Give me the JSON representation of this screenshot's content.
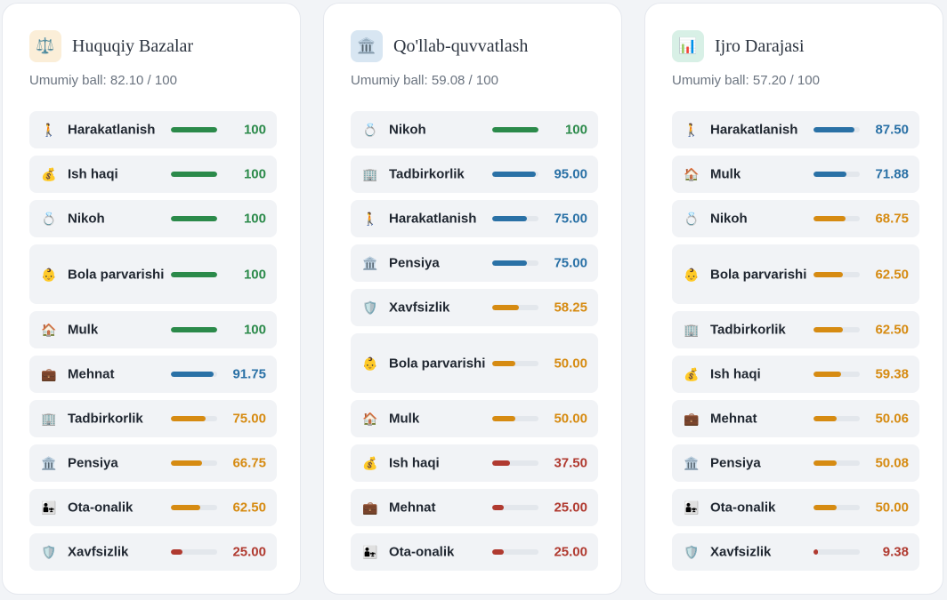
{
  "colors": {
    "green": "#2b8a4a",
    "blue": "#2a71a6",
    "orange": "#d68b12",
    "red": "#b03a30"
  },
  "cards": [
    {
      "title": "Huquqiy Bazalar",
      "icon": "scales-icon",
      "icon_glyph": "⚖️",
      "icon_bg": "#fbeed8",
      "score": "Umumiy ball: 82.10 / 100",
      "rows": [
        {
          "label": "Harakatlanish",
          "value": "100",
          "fraction": 1.0,
          "color": "green",
          "icon": "walking-person-icon",
          "glyph": "🚶",
          "tall": false
        },
        {
          "label": "Ish haqi",
          "value": "100",
          "fraction": 1.0,
          "color": "green",
          "icon": "money-bag-icon",
          "glyph": "💰",
          "tall": false
        },
        {
          "label": "Nikoh",
          "value": "100",
          "fraction": 1.0,
          "color": "green",
          "icon": "ring-icon",
          "glyph": "💍",
          "tall": false
        },
        {
          "label": "Bola parvarishi",
          "value": "100",
          "fraction": 1.0,
          "color": "green",
          "icon": "baby-icon",
          "glyph": "👶",
          "tall": true
        },
        {
          "label": "Mulk",
          "value": "100",
          "fraction": 1.0,
          "color": "green",
          "icon": "house-icon",
          "glyph": "🏠",
          "tall": false
        },
        {
          "label": "Mehnat",
          "value": "91.75",
          "fraction": 0.9175,
          "color": "blue",
          "icon": "briefcase-icon",
          "glyph": "💼",
          "tall": false
        },
        {
          "label": "Tadbirkorlik",
          "value": "75.00",
          "fraction": 0.75,
          "color": "orange",
          "icon": "office-building-icon",
          "glyph": "🏢",
          "tall": false
        },
        {
          "label": "Pensiya",
          "value": "66.75",
          "fraction": 0.6675,
          "color": "orange",
          "icon": "institution-icon",
          "glyph": "🏛️",
          "tall": false
        },
        {
          "label": "Ota-onalik",
          "value": "62.50",
          "fraction": 0.625,
          "color": "orange",
          "icon": "family-icon",
          "glyph": "👨‍👧",
          "tall": false
        },
        {
          "label": "Xavfsizlik",
          "value": "25.00",
          "fraction": 0.25,
          "color": "red",
          "icon": "shield-icon",
          "glyph": "🛡️",
          "tall": false
        }
      ]
    },
    {
      "title": "Qo'llab-quvvatlash",
      "icon": "institution-icon",
      "icon_glyph": "🏛️",
      "icon_bg": "#d8e6f2",
      "score": "Umumiy ball: 59.08 / 100",
      "rows": [
        {
          "label": "Nikoh",
          "value": "100",
          "fraction": 1.0,
          "color": "green",
          "icon": "ring-icon",
          "glyph": "💍",
          "tall": false
        },
        {
          "label": "Tadbirkorlik",
          "value": "95.00",
          "fraction": 0.95,
          "color": "blue",
          "icon": "office-building-icon",
          "glyph": "🏢",
          "tall": false
        },
        {
          "label": "Harakatlanish",
          "value": "75.00",
          "fraction": 0.75,
          "color": "blue",
          "icon": "walking-person-icon",
          "glyph": "🚶",
          "tall": false
        },
        {
          "label": "Pensiya",
          "value": "75.00",
          "fraction": 0.75,
          "color": "blue",
          "icon": "institution-icon",
          "glyph": "🏛️",
          "tall": false
        },
        {
          "label": "Xavfsizlik",
          "value": "58.25",
          "fraction": 0.5825,
          "color": "orange",
          "icon": "shield-icon",
          "glyph": "🛡️",
          "tall": false
        },
        {
          "label": "Bola parvarishi",
          "value": "50.00",
          "fraction": 0.5,
          "color": "orange",
          "icon": "baby-icon",
          "glyph": "👶",
          "tall": true
        },
        {
          "label": "Mulk",
          "value": "50.00",
          "fraction": 0.5,
          "color": "orange",
          "icon": "house-icon",
          "glyph": "🏠",
          "tall": false
        },
        {
          "label": "Ish haqi",
          "value": "37.50",
          "fraction": 0.375,
          "color": "red",
          "icon": "money-bag-icon",
          "glyph": "💰",
          "tall": false
        },
        {
          "label": "Mehnat",
          "value": "25.00",
          "fraction": 0.25,
          "color": "red",
          "icon": "briefcase-icon",
          "glyph": "💼",
          "tall": false
        },
        {
          "label": "Ota-onalik",
          "value": "25.00",
          "fraction": 0.25,
          "color": "red",
          "icon": "family-icon",
          "glyph": "👨‍👧",
          "tall": false
        }
      ]
    },
    {
      "title": "Ijro Darajasi",
      "icon": "bar-chart-icon",
      "icon_glyph": "📊",
      "icon_bg": "#d8f0e6",
      "score": "Umumiy ball: 57.20 / 100",
      "rows": [
        {
          "label": "Harakatlanish",
          "value": "87.50",
          "fraction": 0.875,
          "color": "blue",
          "icon": "walking-person-icon",
          "glyph": "🚶",
          "tall": false
        },
        {
          "label": "Mulk",
          "value": "71.88",
          "fraction": 0.7188,
          "color": "blue",
          "icon": "house-icon",
          "glyph": "🏠",
          "tall": false
        },
        {
          "label": "Nikoh",
          "value": "68.75",
          "fraction": 0.6875,
          "color": "orange",
          "icon": "ring-icon",
          "glyph": "💍",
          "tall": false
        },
        {
          "label": "Bola parvarishi",
          "value": "62.50",
          "fraction": 0.625,
          "color": "orange",
          "icon": "baby-icon",
          "glyph": "👶",
          "tall": true
        },
        {
          "label": "Tadbirkorlik",
          "value": "62.50",
          "fraction": 0.625,
          "color": "orange",
          "icon": "office-building-icon",
          "glyph": "🏢",
          "tall": false
        },
        {
          "label": "Ish haqi",
          "value": "59.38",
          "fraction": 0.5938,
          "color": "orange",
          "icon": "money-bag-icon",
          "glyph": "💰",
          "tall": false
        },
        {
          "label": "Mehnat",
          "value": "50.06",
          "fraction": 0.5006,
          "color": "orange",
          "icon": "briefcase-icon",
          "glyph": "💼",
          "tall": false
        },
        {
          "label": "Pensiya",
          "value": "50.08",
          "fraction": 0.5008,
          "color": "orange",
          "icon": "institution-icon",
          "glyph": "🏛️",
          "tall": false
        },
        {
          "label": "Ota-onalik",
          "value": "50.00",
          "fraction": 0.5,
          "color": "orange",
          "icon": "family-icon",
          "glyph": "👨‍👧",
          "tall": false
        },
        {
          "label": "Xavfsizlik",
          "value": "9.38",
          "fraction": 0.0938,
          "color": "red",
          "icon": "shield-icon",
          "glyph": "🛡️",
          "tall": false
        }
      ]
    }
  ]
}
